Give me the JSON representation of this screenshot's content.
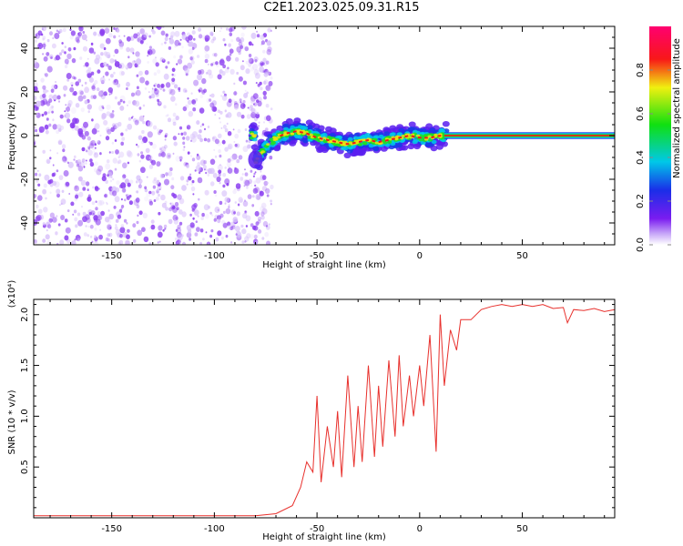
{
  "title": "C2E1.2023.025.09.31.R15",
  "colors": {
    "noise": "#8a3df0",
    "line": "#e8302c",
    "axis": "#000000"
  },
  "chart_data": [
    {
      "type": "heatmap",
      "title": "",
      "xlabel": "Height of straight line (km)",
      "ylabel": "Frequency (Hz)",
      "xlim": [
        -188,
        95
      ],
      "ylim": [
        -50,
        50
      ],
      "xticks": [
        -150,
        -100,
        -50,
        0,
        50
      ],
      "yticks": [
        -40,
        -20,
        0,
        20,
        40
      ],
      "noise_region_x": [
        -188,
        -76
      ],
      "signal_ridge": {
        "x": [
          -80,
          -75,
          -70,
          -65,
          -60,
          -55,
          -50,
          -45,
          -40,
          -35,
          -30,
          -25,
          -20,
          -15,
          -10,
          -5,
          0,
          5,
          10,
          15,
          20,
          30,
          40,
          50,
          60,
          70,
          80,
          95
        ],
        "freq": [
          -12,
          -5,
          -1,
          1,
          2,
          1,
          -1,
          -2,
          -3,
          -4,
          -3,
          -2,
          -3,
          -2,
          -1,
          0,
          -1,
          -1,
          0,
          0,
          0,
          0,
          0,
          0,
          0,
          0,
          0,
          0
        ]
      },
      "colorbar": {
        "label": "Normalized spectral amplitude",
        "range": [
          0.0,
          1.0
        ],
        "ticks": [
          0.0,
          0.2,
          0.4,
          0.6,
          0.8
        ]
      }
    },
    {
      "type": "line",
      "title": "",
      "xlabel": "Height of straight line (km)",
      "ylabel": "SNR (10 * v/v)",
      "multiplier_label": "(x10⁴)",
      "xlim": [
        -188,
        95
      ],
      "ylim": [
        0.0,
        2.15
      ],
      "xticks": [
        -150,
        -100,
        -50,
        0,
        50
      ],
      "yticks": [
        0.5,
        1.0,
        1.5,
        2.0
      ],
      "series": [
        {
          "x": [
            -188,
            -150,
            -100,
            -80,
            -70,
            -62,
            -58,
            -55,
            -52,
            -50,
            -48,
            -45,
            -42,
            -40,
            -38,
            -35,
            -32,
            -30,
            -28,
            -25,
            -22,
            -20,
            -18,
            -15,
            -12,
            -10,
            -8,
            -5,
            -3,
            0,
            2,
            5,
            8,
            10,
            12,
            15,
            18,
            20,
            25,
            30,
            35,
            40,
            45,
            50,
            55,
            60,
            65,
            70,
            72,
            75,
            80,
            85,
            90,
            95
          ],
          "y": [
            0.02,
            0.02,
            0.02,
            0.02,
            0.04,
            0.12,
            0.3,
            0.55,
            0.45,
            1.2,
            0.35,
            0.9,
            0.5,
            1.05,
            0.4,
            1.4,
            0.5,
            1.1,
            0.55,
            1.5,
            0.6,
            1.3,
            0.7,
            1.55,
            0.8,
            1.6,
            0.9,
            1.4,
            1.0,
            1.5,
            1.1,
            1.8,
            0.65,
            2.0,
            1.3,
            1.85,
            1.65,
            1.95,
            1.95,
            2.05,
            2.08,
            2.1,
            2.08,
            2.1,
            2.08,
            2.1,
            2.06,
            2.07,
            1.92,
            2.05,
            2.04,
            2.06,
            2.03,
            2.05
          ]
        }
      ]
    }
  ]
}
